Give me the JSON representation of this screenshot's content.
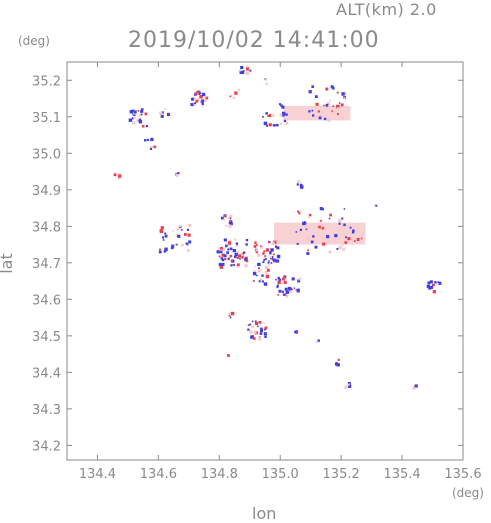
{
  "header": {
    "altitude_label": "ALT(km)  2.0",
    "datetime": "2019/10/02 14:41:00"
  },
  "chart_data": {
    "type": "scatter",
    "title": "2019/10/02 14:41:00",
    "subtitle": "ALT(km)  2.0",
    "xlabel": "lon",
    "ylabel": "lat",
    "x_unit": "(deg)",
    "y_unit": "(deg)",
    "xlim": [
      134.3,
      135.6
    ],
    "ylim": [
      34.16,
      35.25
    ],
    "x_ticks": [
      134.4,
      134.6,
      134.8,
      135.0,
      135.2,
      135.4,
      135.6
    ],
    "x_tick_labels": [
      "134.4",
      "134.6",
      "134.8",
      "135.0",
      "135.2",
      "135.4",
      "135.6"
    ],
    "y_ticks": [
      34.2,
      34.3,
      34.4,
      34.5,
      34.6,
      34.7,
      34.8,
      34.9,
      35.0,
      35.1,
      35.2
    ],
    "y_tick_labels": [
      "34.2",
      "34.3",
      "34.4",
      "34.5",
      "34.6",
      "34.7",
      "34.8",
      "34.9",
      "35.0",
      "35.1",
      "35.2"
    ],
    "grid": false,
    "colors": {
      "positive": "#e8404c",
      "negative": "#4040e0",
      "weak_positive": "#f7c9cc",
      "axis": "#8a8a8a"
    },
    "clusters": [
      {
        "lon": 134.88,
        "lat": 35.23,
        "spread": 0.02,
        "count": 10
      },
      {
        "lon": 134.95,
        "lat": 35.2,
        "spread": 0.01,
        "count": 3
      },
      {
        "lon": 134.73,
        "lat": 35.15,
        "spread": 0.03,
        "count": 25
      },
      {
        "lon": 134.85,
        "lat": 35.17,
        "spread": 0.02,
        "count": 4
      },
      {
        "lon": 134.53,
        "lat": 35.1,
        "spread": 0.03,
        "count": 22
      },
      {
        "lon": 134.62,
        "lat": 35.12,
        "spread": 0.02,
        "count": 6
      },
      {
        "lon": 135.15,
        "lat": 35.14,
        "spread": 0.06,
        "count": 35
      },
      {
        "lon": 134.98,
        "lat": 35.11,
        "spread": 0.04,
        "count": 22
      },
      {
        "lon": 134.57,
        "lat": 35.03,
        "spread": 0.02,
        "count": 6
      },
      {
        "lon": 134.46,
        "lat": 34.94,
        "spread": 0.01,
        "count": 4
      },
      {
        "lon": 135.06,
        "lat": 34.92,
        "spread": 0.01,
        "count": 5
      },
      {
        "lon": 134.66,
        "lat": 34.95,
        "spread": 0.01,
        "count": 3
      },
      {
        "lon": 135.13,
        "lat": 34.79,
        "spread": 0.08,
        "count": 45
      },
      {
        "lon": 135.24,
        "lat": 34.78,
        "spread": 0.03,
        "count": 14
      },
      {
        "lon": 134.65,
        "lat": 34.77,
        "spread": 0.05,
        "count": 32
      },
      {
        "lon": 134.84,
        "lat": 34.73,
        "spread": 0.05,
        "count": 60
      },
      {
        "lon": 134.95,
        "lat": 34.73,
        "spread": 0.04,
        "count": 45
      },
      {
        "lon": 134.82,
        "lat": 34.82,
        "spread": 0.02,
        "count": 14
      },
      {
        "lon": 135.02,
        "lat": 34.64,
        "spread": 0.04,
        "count": 35
      },
      {
        "lon": 134.93,
        "lat": 34.67,
        "spread": 0.03,
        "count": 18
      },
      {
        "lon": 134.92,
        "lat": 34.52,
        "spread": 0.03,
        "count": 28
      },
      {
        "lon": 134.83,
        "lat": 34.56,
        "spread": 0.01,
        "count": 4
      },
      {
        "lon": 135.05,
        "lat": 34.51,
        "spread": 0.01,
        "count": 3
      },
      {
        "lon": 134.83,
        "lat": 34.45,
        "spread": 0.005,
        "count": 2
      },
      {
        "lon": 135.18,
        "lat": 34.43,
        "spread": 0.01,
        "count": 4
      },
      {
        "lon": 135.22,
        "lat": 34.37,
        "spread": 0.01,
        "count": 4
      },
      {
        "lon": 135.44,
        "lat": 34.36,
        "spread": 0.01,
        "count": 4
      },
      {
        "lon": 135.5,
        "lat": 34.64,
        "spread": 0.02,
        "count": 12
      },
      {
        "lon": 135.31,
        "lat": 34.86,
        "spread": 0.005,
        "count": 2
      },
      {
        "lon": 135.12,
        "lat": 34.49,
        "spread": 0.005,
        "count": 2
      }
    ],
    "hatched_regions": [
      {
        "lon": 135.12,
        "lat": 35.11,
        "lon_width": 0.22,
        "lat_height": 0.04
      },
      {
        "lon": 135.13,
        "lat": 34.78,
        "lon_width": 0.3,
        "lat_height": 0.06
      }
    ]
  }
}
